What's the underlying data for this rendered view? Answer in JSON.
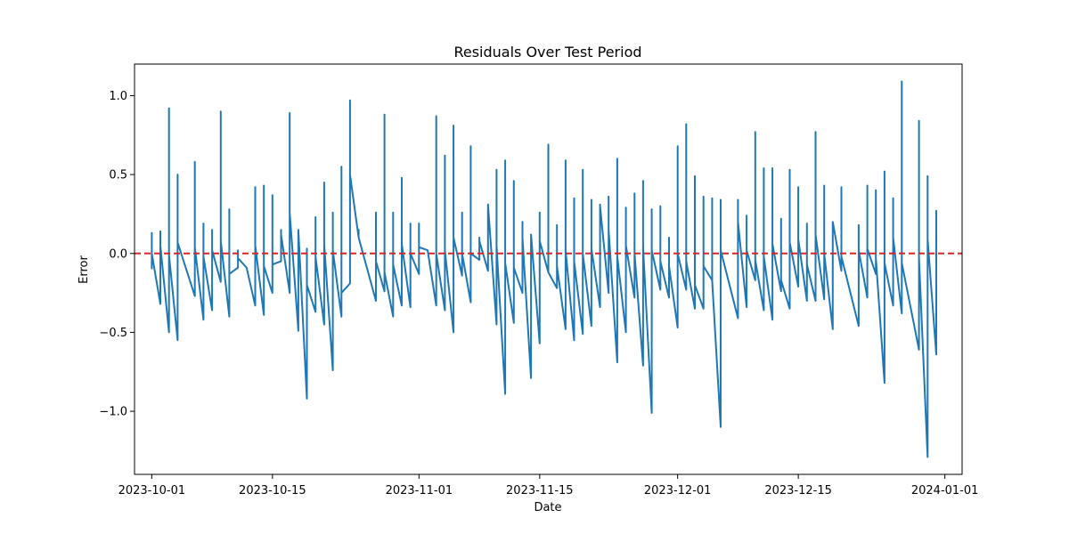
{
  "chart_data": {
    "type": "line",
    "title": "Residuals Over Test Period",
    "xlabel": "Date",
    "ylabel": "Error",
    "xlim": [
      "2023-09-29",
      "2024-01-03"
    ],
    "ylim": [
      -1.4,
      1.2
    ],
    "grid": false,
    "x_ticks": [
      "2023-10-01",
      "2023-10-15",
      "2023-11-01",
      "2023-11-15",
      "2023-12-01",
      "2023-12-15",
      "2024-01-01"
    ],
    "y_ticks": [
      -1.0,
      -0.5,
      0.0,
      0.5,
      1.0
    ],
    "y_tick_labels": [
      "−1.0",
      "−0.5",
      "0.0",
      "0.5",
      "1.0"
    ],
    "reference_line": {
      "y": 0.0,
      "color": "#d62728",
      "style": "dashed"
    },
    "series": [
      {
        "color": "#1f77b4",
        "points": [
          {
            "x": "2023-10-01",
            "lo": -0.1,
            "hi": 0.13,
            "end": 0.0
          },
          {
            "x": "2023-10-02",
            "lo": -0.32,
            "hi": 0.14,
            "end": 0.05
          },
          {
            "x": "2023-10-03",
            "lo": -0.5,
            "hi": 0.92,
            "end": 0.18
          },
          {
            "x": "2023-10-03",
            "lo": -0.01,
            "hi": -0.01,
            "end": -0.01
          },
          {
            "x": "2023-10-04",
            "lo": -0.55,
            "hi": 0.5,
            "end": -0.02
          },
          {
            "x": "2023-10-04",
            "lo": 0.07,
            "hi": 0.07,
            "end": 0.07
          },
          {
            "x": "2023-10-06",
            "lo": -0.27,
            "hi": 0.58,
            "end": 0.04
          },
          {
            "x": "2023-10-07",
            "lo": -0.42,
            "hi": 0.19,
            "end": -0.15
          },
          {
            "x": "2023-10-07",
            "lo": -0.02,
            "hi": -0.02,
            "end": -0.02
          },
          {
            "x": "2023-10-08",
            "lo": -0.36,
            "hi": 0.15,
            "end": 0.02
          },
          {
            "x": "2023-10-09",
            "lo": -0.18,
            "hi": 0.9,
            "end": 0.08
          },
          {
            "x": "2023-10-10",
            "lo": -0.4,
            "hi": 0.28,
            "end": 0.1
          },
          {
            "x": "2023-10-10",
            "lo": -0.13,
            "hi": -0.13,
            "end": -0.13
          },
          {
            "x": "2023-10-11",
            "lo": -0.09,
            "hi": 0.02,
            "end": -0.03
          },
          {
            "x": "2023-10-12",
            "lo": -0.09,
            "hi": -0.09,
            "end": -0.09
          },
          {
            "x": "2023-10-13",
            "lo": -0.33,
            "hi": 0.42,
            "end": 0.05
          },
          {
            "x": "2023-10-14",
            "lo": -0.39,
            "hi": 0.43,
            "end": -0.08
          },
          {
            "x": "2023-10-15",
            "lo": -0.25,
            "hi": 0.37,
            "end": 0.03
          },
          {
            "x": "2023-10-15",
            "lo": -0.07,
            "hi": -0.07,
            "end": -0.07
          },
          {
            "x": "2023-10-16",
            "lo": -0.05,
            "hi": 0.15,
            "end": 0.12
          },
          {
            "x": "2023-10-17",
            "lo": -0.25,
            "hi": 0.89,
            "end": 0.26
          },
          {
            "x": "2023-10-18",
            "lo": -0.49,
            "hi": 0.15,
            "end": 0.15
          },
          {
            "x": "2023-10-19",
            "lo": -0.92,
            "hi": 0.03,
            "end": -0.2
          },
          {
            "x": "2023-10-20",
            "lo": -0.37,
            "hi": 0.23,
            "end": -0.02
          },
          {
            "x": "2023-10-21",
            "lo": -0.45,
            "hi": 0.45,
            "end": 0.06
          },
          {
            "x": "2023-10-22",
            "lo": -0.74,
            "hi": 0.26,
            "end": 0.02
          },
          {
            "x": "2023-10-23",
            "lo": -0.4,
            "hi": 0.55,
            "end": -0.25
          },
          {
            "x": "2023-10-24",
            "lo": -0.19,
            "hi": 0.97,
            "end": 0.5
          },
          {
            "x": "2023-10-25",
            "lo": 0.1,
            "hi": 0.15,
            "end": 0.1
          },
          {
            "x": "2023-10-27",
            "lo": -0.3,
            "hi": 0.26,
            "end": -0.05
          },
          {
            "x": "2023-10-28",
            "lo": -0.24,
            "hi": 0.88,
            "end": -0.12
          },
          {
            "x": "2023-10-29",
            "lo": -0.4,
            "hi": 0.26,
            "end": 0.03
          },
          {
            "x": "2023-10-29",
            "lo": -0.07,
            "hi": -0.07,
            "end": -0.07
          },
          {
            "x": "2023-10-30",
            "lo": -0.33,
            "hi": 0.48,
            "end": -0.05
          },
          {
            "x": "2023-10-30",
            "lo": 0.06,
            "hi": 0.06,
            "end": 0.06
          },
          {
            "x": "2023-10-31",
            "lo": -0.34,
            "hi": 0.19,
            "end": 0.0
          },
          {
            "x": "2023-11-01",
            "lo": -0.13,
            "hi": 0.19,
            "end": 0.04
          },
          {
            "x": "2023-11-02",
            "lo": 0.02,
            "hi": 0.02,
            "end": 0.02
          },
          {
            "x": "2023-11-03",
            "lo": -0.33,
            "hi": 0.87,
            "end": 0.0
          },
          {
            "x": "2023-11-04",
            "lo": -0.36,
            "hi": 0.62,
            "end": 0.15
          },
          {
            "x": "2023-11-04",
            "lo": 0.02,
            "hi": 0.02,
            "end": 0.02
          },
          {
            "x": "2023-11-05",
            "lo": -0.5,
            "hi": 0.81,
            "end": 0.1
          },
          {
            "x": "2023-11-06",
            "lo": -0.14,
            "hi": 0.26,
            "end": 0.0
          },
          {
            "x": "2023-11-07",
            "lo": -0.31,
            "hi": 0.68,
            "end": 0.0
          },
          {
            "x": "2023-11-08",
            "lo": -0.04,
            "hi": 0.1,
            "end": 0.08
          },
          {
            "x": "2023-11-09",
            "lo": -0.11,
            "hi": 0.31,
            "end": 0.31
          },
          {
            "x": "2023-11-10",
            "lo": -0.45,
            "hi": 0.53,
            "end": 0.05
          },
          {
            "x": "2023-11-11",
            "lo": -0.89,
            "hi": 0.59,
            "end": -0.06
          },
          {
            "x": "2023-11-12",
            "lo": -0.44,
            "hi": 0.46,
            "end": -0.09
          },
          {
            "x": "2023-11-13",
            "lo": -0.25,
            "hi": 0.2,
            "end": 0.1
          },
          {
            "x": "2023-11-14",
            "lo": -0.79,
            "hi": 0.12,
            "end": 0.12
          },
          {
            "x": "2023-11-15",
            "lo": -0.57,
            "hi": 0.26,
            "end": 0.08
          },
          {
            "x": "2023-11-16",
            "lo": -0.12,
            "hi": 0.69,
            "end": -0.12
          },
          {
            "x": "2023-11-17",
            "lo": -0.22,
            "hi": 0.18,
            "end": -0.08
          },
          {
            "x": "2023-11-18",
            "lo": -0.48,
            "hi": 0.59,
            "end": 0.02
          },
          {
            "x": "2023-11-19",
            "lo": -0.55,
            "hi": 0.35,
            "end": -0.05
          },
          {
            "x": "2023-11-20",
            "lo": -0.51,
            "hi": 0.53,
            "end": 0.0
          },
          {
            "x": "2023-11-21",
            "lo": -0.46,
            "hi": 0.34,
            "end": 0.03
          },
          {
            "x": "2023-11-22",
            "lo": -0.34,
            "hi": 0.31,
            "end": 0.3
          },
          {
            "x": "2023-11-23",
            "lo": -0.25,
            "hi": 0.36,
            "end": 0.15
          },
          {
            "x": "2023-11-24",
            "lo": -0.69,
            "hi": 0.6,
            "end": -0.02
          },
          {
            "x": "2023-11-25",
            "lo": -0.5,
            "hi": 0.29,
            "end": 0.05
          },
          {
            "x": "2023-11-26",
            "lo": -0.28,
            "hi": 0.38,
            "end": 0.0
          },
          {
            "x": "2023-11-27",
            "lo": -0.71,
            "hi": 0.46,
            "end": 0.04
          },
          {
            "x": "2023-11-28",
            "lo": -1.01,
            "hi": 0.28,
            "end": 0.02
          },
          {
            "x": "2023-11-29",
            "lo": -0.23,
            "hi": 0.3,
            "end": -0.05
          },
          {
            "x": "2023-11-30",
            "lo": -0.28,
            "hi": 0.1,
            "end": -0.08
          },
          {
            "x": "2023-12-01",
            "lo": -0.47,
            "hi": 0.68,
            "end": 0.0
          },
          {
            "x": "2023-12-02",
            "lo": -0.23,
            "hi": 0.82,
            "end": -0.05
          },
          {
            "x": "2023-12-03",
            "lo": -0.35,
            "hi": 0.49,
            "end": -0.2
          },
          {
            "x": "2023-12-04",
            "lo": -0.35,
            "hi": 0.36,
            "end": -0.08
          },
          {
            "x": "2023-12-05",
            "lo": -0.17,
            "hi": 0.35,
            "end": -0.17
          },
          {
            "x": "2023-12-06",
            "lo": -1.1,
            "hi": 0.34,
            "end": 0.02
          },
          {
            "x": "2023-12-08",
            "lo": -0.41,
            "hi": 0.34,
            "end": 0.2
          },
          {
            "x": "2023-12-09",
            "lo": -0.34,
            "hi": 0.24,
            "end": 0.02
          },
          {
            "x": "2023-12-10",
            "lo": -0.17,
            "hi": 0.77,
            "end": 0.07
          },
          {
            "x": "2023-12-10",
            "lo": -0.04,
            "hi": -0.04,
            "end": -0.04
          },
          {
            "x": "2023-12-11",
            "lo": -0.36,
            "hi": 0.54,
            "end": -0.02
          },
          {
            "x": "2023-12-12",
            "lo": -0.42,
            "hi": 0.54,
            "end": 0.24
          },
          {
            "x": "2023-12-12",
            "lo": 0.06,
            "hi": 0.06,
            "end": 0.06
          },
          {
            "x": "2023-12-13",
            "lo": -0.24,
            "hi": 0.22,
            "end": -0.17
          },
          {
            "x": "2023-12-14",
            "lo": -0.35,
            "hi": 0.53,
            "end": 0.07
          },
          {
            "x": "2023-12-15",
            "lo": -0.21,
            "hi": 0.42,
            "end": 0.09
          },
          {
            "x": "2023-12-16",
            "lo": -0.3,
            "hi": 0.19,
            "end": -0.07
          },
          {
            "x": "2023-12-17",
            "lo": -0.3,
            "hi": 0.77,
            "end": 0.12
          },
          {
            "x": "2023-12-18",
            "lo": -0.29,
            "hi": 0.43,
            "end": 0.0
          },
          {
            "x": "2023-12-19",
            "lo": -0.48,
            "hi": 0.2,
            "end": 0.2
          },
          {
            "x": "2023-12-20",
            "lo": -0.11,
            "hi": 0.42,
            "end": 0.02
          },
          {
            "x": "2023-12-20",
            "lo": -0.02,
            "hi": -0.02,
            "end": -0.02
          },
          {
            "x": "2023-12-22",
            "lo": -0.46,
            "hi": 0.18,
            "end": 0.02
          },
          {
            "x": "2023-12-23",
            "lo": -0.28,
            "hi": 0.43,
            "end": 0.03
          },
          {
            "x": "2023-12-24",
            "lo": -0.13,
            "hi": 0.4,
            "end": -0.03
          },
          {
            "x": "2023-12-25",
            "lo": -0.82,
            "hi": 0.52,
            "end": -0.06
          },
          {
            "x": "2023-12-26",
            "lo": -0.33,
            "hi": 0.35,
            "end": 0.1
          },
          {
            "x": "2023-12-27",
            "lo": -0.38,
            "hi": 1.09,
            "end": 0.36
          },
          {
            "x": "2023-12-27",
            "lo": -0.06,
            "hi": -0.06,
            "end": -0.06
          },
          {
            "x": "2023-12-29",
            "lo": -0.61,
            "hi": 0.84,
            "end": 0.1
          },
          {
            "x": "2023-12-29",
            "lo": -0.03,
            "hi": -0.03,
            "end": -0.03
          },
          {
            "x": "2023-12-30",
            "lo": -1.29,
            "hi": 0.49,
            "end": 0.09
          },
          {
            "x": "2023-12-31",
            "lo": -0.64,
            "hi": 0.27,
            "end": 0.1
          }
        ]
      }
    ]
  }
}
